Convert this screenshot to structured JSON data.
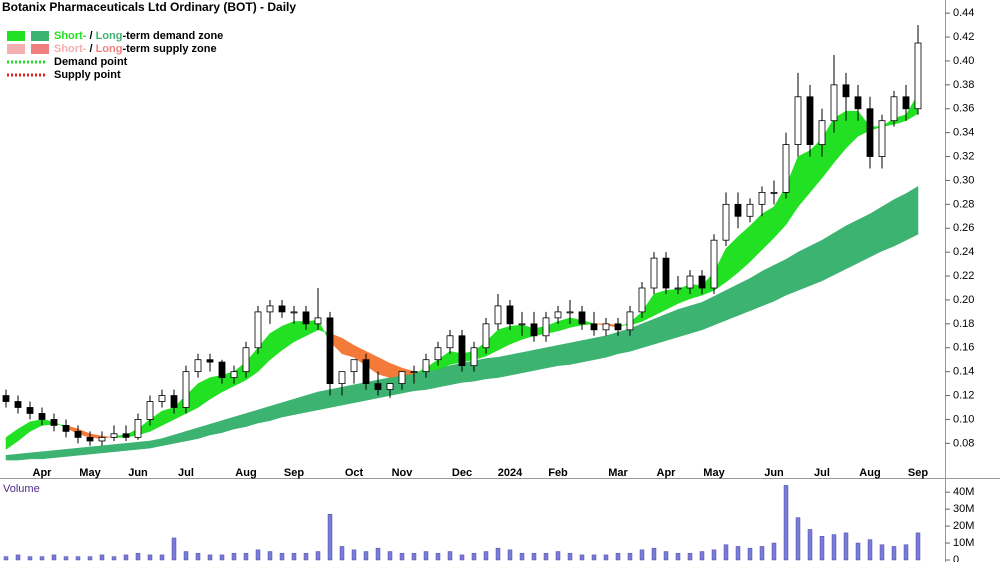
{
  "chart_data": [
    {
      "type": "candlestick",
      "title": "Botanix Pharmaceuticals Ltd Ordinary (BOT) - Daily",
      "categories": [
        null,
        null,
        null,
        "Apr",
        null,
        null,
        null,
        "May",
        null,
        null,
        null,
        "Jun",
        null,
        null,
        null,
        "Jul",
        null,
        null,
        null,
        null,
        "Aug",
        null,
        null,
        null,
        "Sep",
        null,
        null,
        null,
        null,
        "Oct",
        null,
        null,
        null,
        "Nov",
        null,
        null,
        null,
        null,
        "Dec",
        null,
        null,
        null,
        "2024",
        null,
        null,
        null,
        "Feb",
        null,
        null,
        null,
        null,
        "Mar",
        null,
        null,
        null,
        "Apr",
        null,
        null,
        null,
        "May",
        null,
        null,
        null,
        null,
        "Jun",
        null,
        null,
        null,
        "Jul",
        null,
        null,
        null,
        "Aug",
        null,
        null,
        null,
        "Sep"
      ],
      "open": [
        0.12,
        0.115,
        0.11,
        0.105,
        0.1,
        0.095,
        0.09,
        0.085,
        0.082,
        0.085,
        0.088,
        0.085,
        0.1,
        0.115,
        0.12,
        0.11,
        0.14,
        0.15,
        0.148,
        0.135,
        0.14,
        0.16,
        0.19,
        0.195,
        0.19,
        0.19,
        0.18,
        0.185,
        0.13,
        0.14,
        0.15,
        0.13,
        0.125,
        0.13,
        0.14,
        0.14,
        0.15,
        0.16,
        0.17,
        0.145,
        0.16,
        0.18,
        0.195,
        0.18,
        0.18,
        0.17,
        0.185,
        0.19,
        0.19,
        0.18,
        0.175,
        0.18,
        0.175,
        0.19,
        0.21,
        0.235,
        0.21,
        0.21,
        0.22,
        0.21,
        0.25,
        0.28,
        0.27,
        0.28,
        0.29,
        0.29,
        0.33,
        0.37,
        0.33,
        0.35,
        0.38,
        0.37,
        0.36,
        0.32,
        0.35,
        0.37,
        0.36
      ],
      "high": [
        0.125,
        0.12,
        0.115,
        0.11,
        0.105,
        0.1,
        0.095,
        0.09,
        0.09,
        0.095,
        0.095,
        0.105,
        0.12,
        0.125,
        0.125,
        0.145,
        0.155,
        0.155,
        0.15,
        0.145,
        0.165,
        0.195,
        0.2,
        0.2,
        0.195,
        0.195,
        0.21,
        0.19,
        0.14,
        0.15,
        0.155,
        0.14,
        0.13,
        0.14,
        0.145,
        0.155,
        0.165,
        0.175,
        0.175,
        0.165,
        0.185,
        0.205,
        0.2,
        0.19,
        0.19,
        0.19,
        0.195,
        0.2,
        0.195,
        0.19,
        0.185,
        0.185,
        0.195,
        0.215,
        0.24,
        0.24,
        0.22,
        0.225,
        0.225,
        0.255,
        0.29,
        0.29,
        0.285,
        0.295,
        0.3,
        0.34,
        0.39,
        0.38,
        0.36,
        0.405,
        0.39,
        0.38,
        0.37,
        0.355,
        0.375,
        0.38,
        0.43
      ],
      "low": [
        0.11,
        0.105,
        0.1,
        0.095,
        0.09,
        0.085,
        0.08,
        0.078,
        0.078,
        0.082,
        0.082,
        0.083,
        0.095,
        0.11,
        0.105,
        0.105,
        0.135,
        0.14,
        0.13,
        0.13,
        0.135,
        0.155,
        0.18,
        0.185,
        0.18,
        0.175,
        0.175,
        0.12,
        0.12,
        0.13,
        0.125,
        0.12,
        0.118,
        0.125,
        0.13,
        0.135,
        0.145,
        0.155,
        0.14,
        0.14,
        0.155,
        0.175,
        0.175,
        0.17,
        0.165,
        0.165,
        0.18,
        0.18,
        0.175,
        0.17,
        0.17,
        0.17,
        0.17,
        0.185,
        0.205,
        0.205,
        0.205,
        0.205,
        0.205,
        0.205,
        0.245,
        0.26,
        0.265,
        0.27,
        0.28,
        0.285,
        0.32,
        0.32,
        0.32,
        0.34,
        0.35,
        0.35,
        0.31,
        0.31,
        0.345,
        0.35,
        0.355
      ],
      "close": [
        0.115,
        0.11,
        0.105,
        0.1,
        0.095,
        0.09,
        0.085,
        0.082,
        0.085,
        0.088,
        0.085,
        0.1,
        0.115,
        0.12,
        0.11,
        0.14,
        0.15,
        0.148,
        0.135,
        0.14,
        0.16,
        0.19,
        0.195,
        0.19,
        0.19,
        0.18,
        0.185,
        0.13,
        0.14,
        0.15,
        0.13,
        0.125,
        0.13,
        0.14,
        0.14,
        0.15,
        0.16,
        0.17,
        0.145,
        0.16,
        0.18,
        0.195,
        0.18,
        0.18,
        0.17,
        0.185,
        0.19,
        0.19,
        0.18,
        0.175,
        0.18,
        0.175,
        0.19,
        0.21,
        0.235,
        0.21,
        0.21,
        0.22,
        0.21,
        0.25,
        0.28,
        0.27,
        0.28,
        0.29,
        0.29,
        0.33,
        0.37,
        0.33,
        0.35,
        0.38,
        0.37,
        0.36,
        0.32,
        0.35,
        0.37,
        0.36,
        0.415
      ],
      "up_color": "#ffffff",
      "down_color": "#000000",
      "bands": [
        {
          "fast": [
            0.07,
            0.071,
            0.072,
            0.073,
            0.074,
            0.075,
            0.076,
            0.077,
            0.078,
            0.079,
            0.08,
            0.081,
            0.082,
            0.084,
            0.087,
            0.09,
            0.093,
            0.096,
            0.099,
            0.102,
            0.105,
            0.108,
            0.111,
            0.114,
            0.117,
            0.12,
            0.123,
            0.125,
            0.127,
            0.129,
            0.131,
            0.133,
            0.135,
            0.137,
            0.139,
            0.141,
            0.143,
            0.145,
            0.147,
            0.149,
            0.151,
            0.152,
            0.154,
            0.156,
            0.158,
            0.16,
            0.162,
            0.164,
            0.166,
            0.168,
            0.17,
            0.173,
            0.176,
            0.18,
            0.184,
            0.188,
            0.192,
            0.195,
            0.198,
            0.203,
            0.208,
            0.213,
            0.218,
            0.224,
            0.229,
            0.234,
            0.24,
            0.245,
            0.25,
            0.256,
            0.262,
            0.267,
            0.272,
            0.278,
            0.284,
            0.289,
            0.295
          ],
          "slow": [
            0.066,
            0.066,
            0.067,
            0.067,
            0.068,
            0.069,
            0.07,
            0.071,
            0.072,
            0.073,
            0.074,
            0.075,
            0.076,
            0.078,
            0.08,
            0.082,
            0.084,
            0.087,
            0.089,
            0.092,
            0.094,
            0.097,
            0.099,
            0.102,
            0.104,
            0.106,
            0.108,
            0.11,
            0.112,
            0.114,
            0.116,
            0.118,
            0.12,
            0.122,
            0.124,
            0.125,
            0.127,
            0.129,
            0.131,
            0.132,
            0.134,
            0.135,
            0.137,
            0.139,
            0.141,
            0.143,
            0.145,
            0.146,
            0.148,
            0.15,
            0.152,
            0.155,
            0.157,
            0.16,
            0.163,
            0.166,
            0.169,
            0.172,
            0.175,
            0.179,
            0.183,
            0.187,
            0.191,
            0.195,
            0.199,
            0.204,
            0.208,
            0.212,
            0.216,
            0.221,
            0.226,
            0.231,
            0.236,
            0.241,
            0.245,
            0.25,
            0.255
          ],
          "up_color": "#3cb371",
          "down_color": "#f08080"
        },
        {
          "fast": [
            0.085,
            0.092,
            0.098,
            0.1,
            0.098,
            0.093,
            0.088,
            0.085,
            0.084,
            0.086,
            0.087,
            0.092,
            0.1,
            0.107,
            0.11,
            0.12,
            0.13,
            0.135,
            0.137,
            0.14,
            0.148,
            0.16,
            0.172,
            0.178,
            0.182,
            0.182,
            0.183,
            0.165,
            0.155,
            0.152,
            0.145,
            0.138,
            0.135,
            0.137,
            0.138,
            0.143,
            0.15,
            0.157,
            0.155,
            0.157,
            0.165,
            0.175,
            0.178,
            0.179,
            0.176,
            0.178,
            0.182,
            0.185,
            0.183,
            0.18,
            0.179,
            0.177,
            0.181,
            0.19,
            0.205,
            0.208,
            0.209,
            0.213,
            0.212,
            0.223,
            0.243,
            0.253,
            0.262,
            0.272,
            0.278,
            0.295,
            0.32,
            0.325,
            0.335,
            0.352,
            0.358,
            0.358,
            0.345,
            0.345,
            0.352,
            0.355,
            0.372
          ],
          "slow": [
            0.075,
            0.082,
            0.09,
            0.095,
            0.096,
            0.095,
            0.092,
            0.088,
            0.086,
            0.085,
            0.085,
            0.087,
            0.09,
            0.095,
            0.1,
            0.105,
            0.11,
            0.117,
            0.123,
            0.128,
            0.133,
            0.14,
            0.15,
            0.158,
            0.165,
            0.17,
            0.175,
            0.172,
            0.168,
            0.162,
            0.157,
            0.152,
            0.147,
            0.143,
            0.14,
            0.14,
            0.142,
            0.146,
            0.148,
            0.15,
            0.153,
            0.158,
            0.163,
            0.167,
            0.17,
            0.172,
            0.174,
            0.177,
            0.179,
            0.18,
            0.18,
            0.179,
            0.179,
            0.182,
            0.187,
            0.192,
            0.197,
            0.201,
            0.204,
            0.208,
            0.215,
            0.223,
            0.232,
            0.242,
            0.252,
            0.263,
            0.278,
            0.29,
            0.302,
            0.315,
            0.327,
            0.337,
            0.342,
            0.345,
            0.347,
            0.35,
            0.356
          ],
          "up_color": "#22e022",
          "down_color": "#f47a3a"
        }
      ],
      "legend": [
        {
          "parts": [
            {
              "text": "Short-",
              "color": "#22e022"
            },
            {
              "text": " / "
            },
            {
              "text": "Long",
              "color": "#3cb371"
            },
            {
              "text": "-term demand zone"
            }
          ],
          "swatches": [
            "#22e022",
            "#3cb371"
          ]
        },
        {
          "parts": [
            {
              "text": "Short-",
              "color": "#f4b0b0"
            },
            {
              "text": " / "
            },
            {
              "text": "Long",
              "color": "#f08080"
            },
            {
              "text": "-term supply zone"
            }
          ],
          "swatches": [
            "#f4b0b0",
            "#f08080"
          ]
        },
        {
          "text": "Demand point",
          "line_color": "#22e022"
        },
        {
          "text": "Supply point",
          "line_color": "#e02020"
        }
      ],
      "legend_position": "upper left",
      "ylim": [
        0.051,
        0.451
      ],
      "yticks": [
        0.08,
        {
          "value": 0.1,
          "label": "0.10"
        },
        0.12,
        0.14,
        0.16,
        0.18,
        {
          "value": 0.2,
          "label": "0.20"
        },
        0.22,
        0.24,
        0.26,
        0.28,
        {
          "value": 0.3,
          "label": "0.30"
        },
        0.32,
        0.34,
        0.36,
        0.38,
        {
          "value": 0.4,
          "label": "0.40"
        },
        0.42,
        0.44
      ],
      "log_scale": false,
      "grid": false
    },
    {
      "type": "bar",
      "title": "Volume",
      "values": [
        2,
        3,
        2,
        2,
        3,
        2,
        2,
        2,
        3,
        2,
        3,
        4,
        3,
        3,
        13,
        5,
        4,
        3,
        3,
        4,
        4,
        6,
        5,
        4,
        4,
        4,
        5,
        27,
        8,
        6,
        5,
        7,
        5,
        4,
        4,
        5,
        4,
        5,
        3,
        4,
        5,
        7,
        6,
        4,
        4,
        4,
        5,
        4,
        3,
        3,
        3,
        4,
        4,
        6,
        7,
        5,
        4,
        4,
        5,
        6,
        9,
        8,
        7,
        8,
        10,
        44,
        25,
        18,
        14,
        15,
        16,
        10,
        12,
        9,
        8,
        9,
        16
      ],
      "color": "#7a7ad8",
      "ylim": [
        0,
        46
      ],
      "yticks": [
        0,
        {
          "value": 10,
          "label": "10M"
        },
        {
          "value": 20,
          "label": "20M"
        },
        {
          "value": 30,
          "label": "30M"
        },
        {
          "value": 40,
          "label": "40M"
        }
      ],
      "grid": false
    }
  ]
}
